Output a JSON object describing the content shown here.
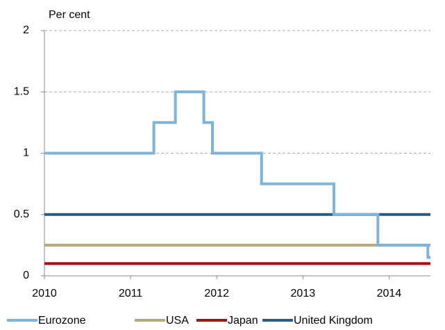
{
  "chart_data": {
    "type": "line",
    "y_label": "Per cent",
    "xlim": [
      2010,
      2014.48
    ],
    "xticks": [
      2010,
      2011,
      2012,
      2013,
      2014
    ],
    "ylim": [
      0,
      2
    ],
    "yticks": [
      0,
      0.5,
      1,
      1.5,
      2
    ],
    "grid": true,
    "legend": "bottom",
    "series": [
      {
        "name": "Eurozone",
        "color": "#7eb3da",
        "x": [
          2010,
          2011.27,
          2011.27,
          2011.52,
          2011.52,
          2011.85,
          2011.85,
          2011.95,
          2011.95,
          2012.52,
          2012.52,
          2013.36,
          2013.36,
          2013.87,
          2013.87,
          2014.45,
          2014.45,
          2014.48
        ],
        "values": [
          1,
          1,
          1.25,
          1.25,
          1.5,
          1.5,
          1.25,
          1.25,
          1,
          1,
          0.75,
          0.75,
          0.5,
          0.5,
          0.25,
          0.25,
          0.15,
          0.15
        ]
      },
      {
        "name": "USA",
        "color": "#b8a67c",
        "x": [
          2010,
          2014.48
        ],
        "values": [
          0.25,
          0.25
        ]
      },
      {
        "name": "Japan",
        "color": "#a50f15",
        "x": [
          2010,
          2014.48
        ],
        "values": [
          0.1,
          0.1
        ]
      },
      {
        "name": "United Kingdom",
        "color": "#2d5b80",
        "x": [
          2010,
          2014.48
        ],
        "values": [
          0.5,
          0.5
        ]
      }
    ]
  }
}
